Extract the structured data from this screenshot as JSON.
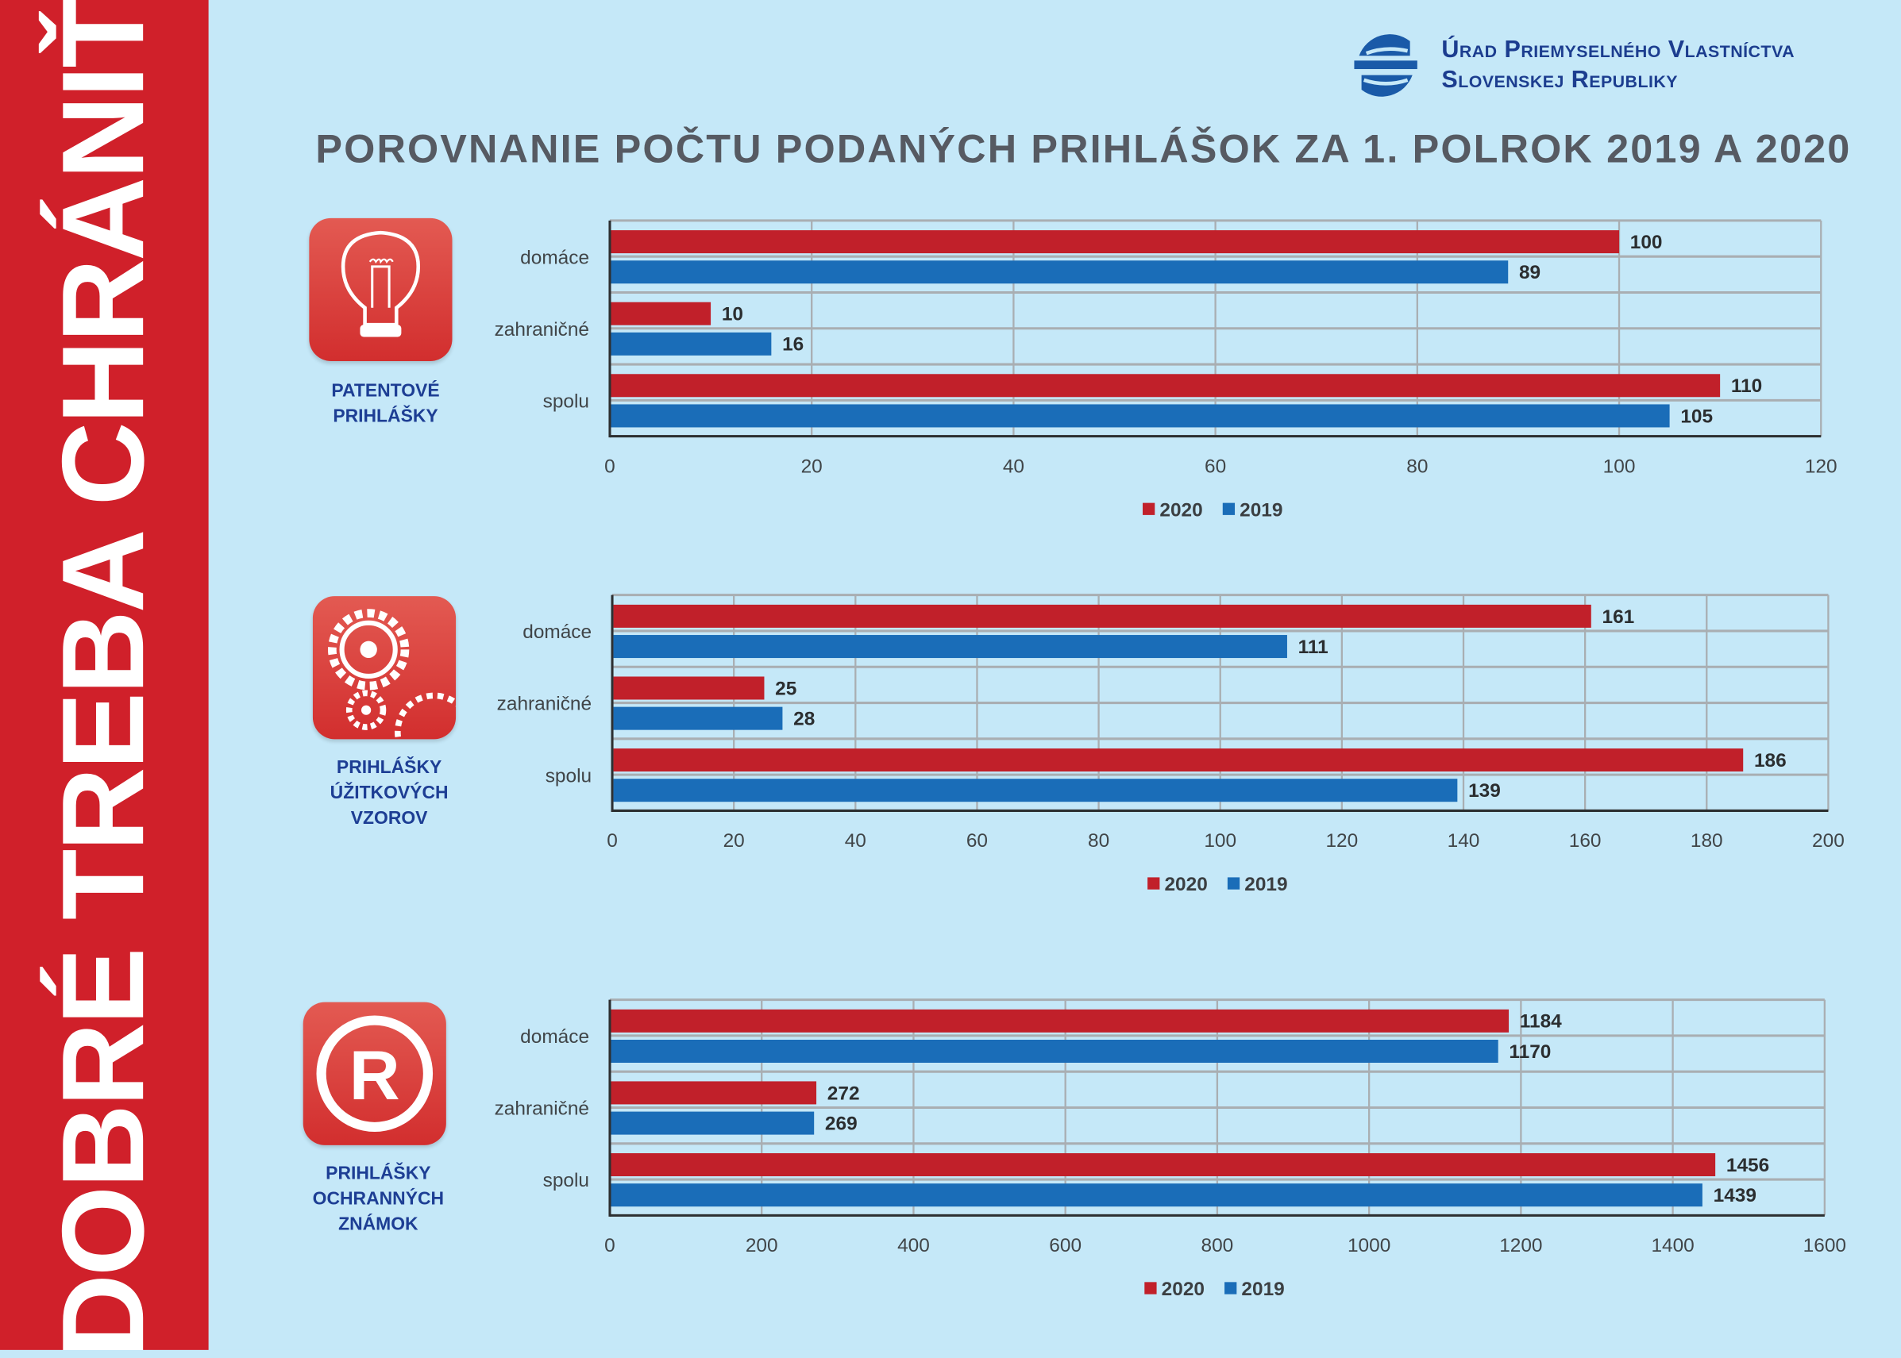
{
  "sidebar": {
    "slogan": "DOBRÉ TREBA CHRÁNIŤ!"
  },
  "logo": {
    "line1": "Úrad Priemyselného Vlastníctva",
    "line2": "Slovenskej Republiky"
  },
  "title": "POROVNANIE POČTU PODANÝCH PRIHLÁŠOK ZA 1. POLROK 2019 A 2020",
  "colors": {
    "2020": "#c1202a",
    "2019": "#1a6db8",
    "background": "#c5e8f8",
    "sidebar": "#d0202a"
  },
  "sections": [
    {
      "caption": [
        "PATENTOVÉ",
        "PRIHLÁŠKY"
      ],
      "icon": "lightbulb-icon"
    },
    {
      "caption": [
        "PRIHLÁŠKY",
        "ÚŽITKOVÝCH",
        "VZOROV"
      ],
      "icon": "gears-icon"
    },
    {
      "caption": [
        "PRIHLÁŠKY",
        "OCHRANNÝCH",
        "ZNÁMOK"
      ],
      "icon": "registered-trademark-icon"
    }
  ],
  "chart_data": [
    {
      "type": "bar",
      "orientation": "horizontal",
      "categories": [
        "domáce",
        "zahraničné",
        "spolu"
      ],
      "series": [
        {
          "name": "2020",
          "values": [
            100,
            10,
            110
          ]
        },
        {
          "name": "2019",
          "values": [
            89,
            16,
            105
          ]
        }
      ],
      "xlim": [
        0,
        120
      ],
      "xticks": [
        "0",
        "20",
        "40",
        "60",
        "80",
        "100",
        "120"
      ],
      "grid": true,
      "legend": "bottom"
    },
    {
      "type": "bar",
      "orientation": "horizontal",
      "categories": [
        "domáce",
        "zahraničné",
        "spolu"
      ],
      "series": [
        {
          "name": "2020",
          "values": [
            161,
            25,
            186
          ]
        },
        {
          "name": "2019",
          "values": [
            111,
            28,
            139
          ]
        }
      ],
      "xlim": [
        0,
        200
      ],
      "xticks": [
        "0",
        "20",
        "40",
        "60",
        "80",
        "100",
        "120",
        "140",
        "160",
        "180",
        "200"
      ],
      "grid": true,
      "legend": "bottom"
    },
    {
      "type": "bar",
      "orientation": "horizontal",
      "categories": [
        "domáce",
        "zahraničné",
        "spolu"
      ],
      "series": [
        {
          "name": "2020",
          "values": [
            1184,
            272,
            1456
          ]
        },
        {
          "name": "2019",
          "values": [
            1170,
            269,
            1439
          ]
        }
      ],
      "xlim": [
        0,
        1600
      ],
      "xticks": [
        "0",
        "200",
        "400",
        "600",
        "800",
        "1000",
        "1200",
        "1400",
        "1600"
      ],
      "grid": true,
      "legend": "bottom"
    }
  ]
}
